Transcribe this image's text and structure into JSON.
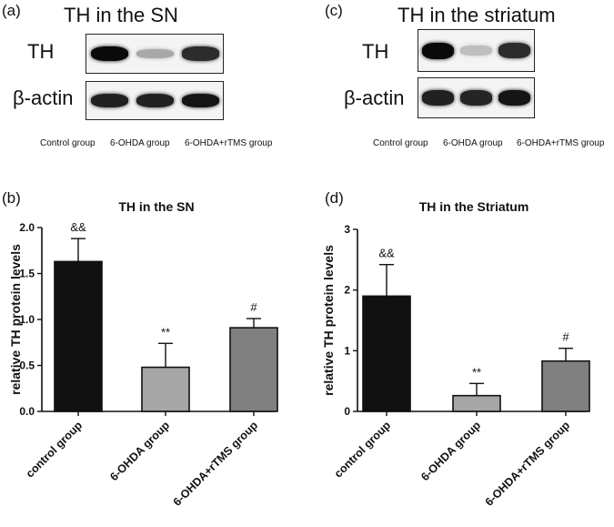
{
  "blots": [
    {
      "panel": "(a)",
      "title": "TH in the SN",
      "rows": [
        {
          "label": "TH",
          "intensity": [
            1.0,
            0.3,
            0.85
          ]
        },
        {
          "label": "β-actin",
          "intensity": [
            0.9,
            0.9,
            0.95
          ]
        }
      ],
      "lanes": [
        "Control group",
        "6-OHDA group",
        "6-OHDA+rTMS group"
      ]
    },
    {
      "panel": "(c)",
      "title": "TH in the striatum",
      "rows": [
        {
          "label": "TH",
          "intensity": [
            1.0,
            0.2,
            0.85
          ]
        },
        {
          "label": "β-actin",
          "intensity": [
            0.9,
            0.88,
            0.95
          ]
        }
      ],
      "lanes": [
        "Control group",
        "6-OHDA group",
        "6-OHDA+rTMS group"
      ]
    }
  ],
  "chart_data": [
    {
      "type": "bar",
      "panel": "(b)",
      "title": "TH in the SN",
      "ylabel": "relative TH protein levels",
      "xlabel": "",
      "categories": [
        "control group",
        "6-OHDA group",
        "6-OHDA+rTMS group"
      ],
      "values": [
        1.63,
        0.48,
        0.91
      ],
      "errors": [
        0.25,
        0.26,
        0.1
      ],
      "annotations": [
        "&&",
        "**",
        "#"
      ],
      "colors": [
        "#111111",
        "#a6a6a6",
        "#808080"
      ],
      "ylim": [
        0,
        2.0
      ],
      "yticks": [
        0.0,
        0.5,
        1.0,
        1.5,
        2.0
      ],
      "ytick_labels": [
        "0.0",
        "0.5",
        "1.0",
        "1.5",
        "2.0"
      ],
      "grid": false,
      "legend": "none"
    },
    {
      "type": "bar",
      "panel": "(d)",
      "title": "TH in the Striatum",
      "ylabel": "relative TH protein levels",
      "xlabel": "",
      "categories": [
        "control group",
        "6-OHDA group",
        "6-OHDA+rTMS group"
      ],
      "values": [
        1.9,
        0.26,
        0.83
      ],
      "errors": [
        0.52,
        0.2,
        0.21
      ],
      "annotations": [
        "&&",
        "**",
        "#"
      ],
      "colors": [
        "#111111",
        "#a6a6a6",
        "#808080"
      ],
      "ylim": [
        0,
        3
      ],
      "yticks": [
        0,
        1,
        2,
        3
      ],
      "ytick_labels": [
        "0",
        "1",
        "2",
        "3"
      ],
      "grid": false,
      "legend": "none"
    }
  ]
}
